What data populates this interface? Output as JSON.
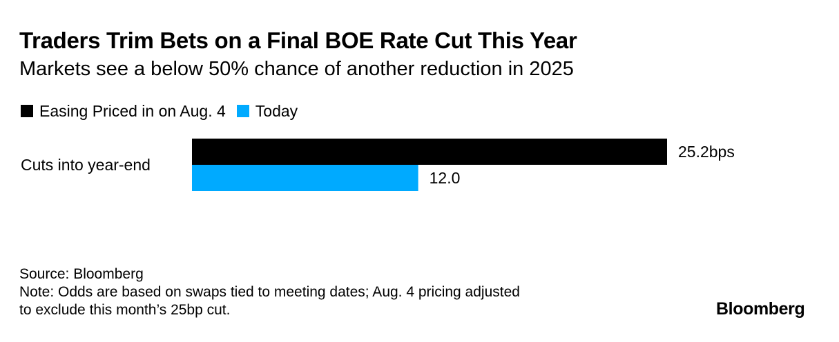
{
  "title": "Traders Trim Bets on a Final BOE Rate Cut This Year",
  "subtitle": "Markets see a below 50% chance of another reduction in 2025",
  "source": "Source: Bloomberg",
  "note_line1": "Note: Odds are based on swaps tied to meeting dates; Aug. 4 pricing adjusted",
  "note_line2": "to exclude this month’s 25bp cut.",
  "brand": "Bloomberg",
  "colors": {
    "series_1": "#000000",
    "series_2": "#00aaff"
  },
  "chart_data": {
    "type": "bar",
    "orientation": "horizontal",
    "categories": [
      "Cuts into year-end"
    ],
    "series": [
      {
        "name": "Easing Priced in on Aug. 4",
        "values": [
          25.2
        ],
        "labels": [
          "25.2bps"
        ],
        "color": "#000000"
      },
      {
        "name": "Today",
        "values": [
          12.0
        ],
        "labels": [
          "12.0"
        ],
        "color": "#00aaff"
      }
    ],
    "xlim": [
      0,
      25.2
    ],
    "grid": false,
    "legend_position": "top-left"
  }
}
